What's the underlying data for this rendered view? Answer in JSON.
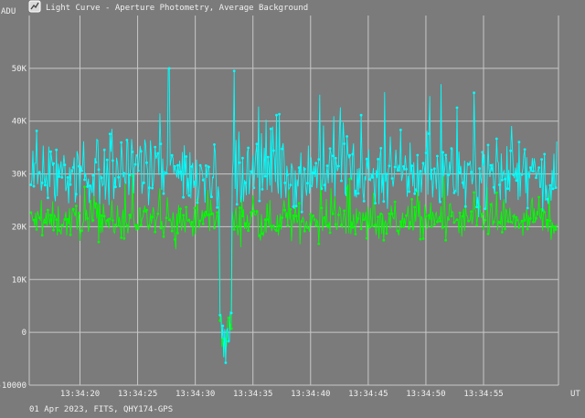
{
  "window": {
    "icon": "app-chart-icon",
    "title": "Light Curve - Aperture Photometry, Average Background"
  },
  "footer": {
    "info": "01 Apr 2023, FITS, QHY174-GPS"
  },
  "colors": {
    "background": "#7b7b7b",
    "grid": "#c8c8c8",
    "text": "#f0f0f0",
    "series_target": "#00ffff",
    "series_comparison": "#00ff00"
  },
  "chart_data": {
    "type": "line",
    "grid": true,
    "ylabel": "ADU",
    "xlabel": "UT",
    "ylim": [
      -10000,
      60000
    ],
    "xlim": [
      "13:34:15.6",
      "13:35:01.5"
    ],
    "y_ticks": [
      {
        "value": 50000,
        "label": "50K"
      },
      {
        "value": 40000,
        "label": "40K"
      },
      {
        "value": 30000,
        "label": "30K"
      },
      {
        "value": 20000,
        "label": "20K"
      },
      {
        "value": 10000,
        "label": "10K"
      },
      {
        "value": 0,
        "label": "0"
      },
      {
        "value": -10000,
        "label": "-10000"
      }
    ],
    "x_ticks": [
      "13:34:20",
      "13:34:25",
      "13:34:30",
      "13:34:35",
      "13:34:40",
      "13:34:45",
      "13:34:50",
      "13:34:55"
    ],
    "series": [
      {
        "color": "#00ffff",
        "mean": 30000,
        "spread": 5500,
        "peaks": [
          {
            "x": "13:34:27.7",
            "y": 50000
          },
          {
            "x": "13:34:33.4",
            "y": 49500
          },
          {
            "x": "13:34:46.4",
            "y": 45500
          },
          {
            "x": "13:34:40.8",
            "y": 45000
          },
          {
            "x": "13:34:51.3",
            "y": 47000
          }
        ],
        "dip": {
          "start": "13:34:32.1",
          "end": "13:34:33.2",
          "min_y": -6500
        }
      },
      {
        "color": "#00ff00",
        "mean": 21000,
        "spread": 2800,
        "peaks": [],
        "dip": {
          "start": "13:34:32.1",
          "end": "13:34:33.2",
          "min_y": -6500
        }
      }
    ],
    "samples_per_series": 560
  }
}
